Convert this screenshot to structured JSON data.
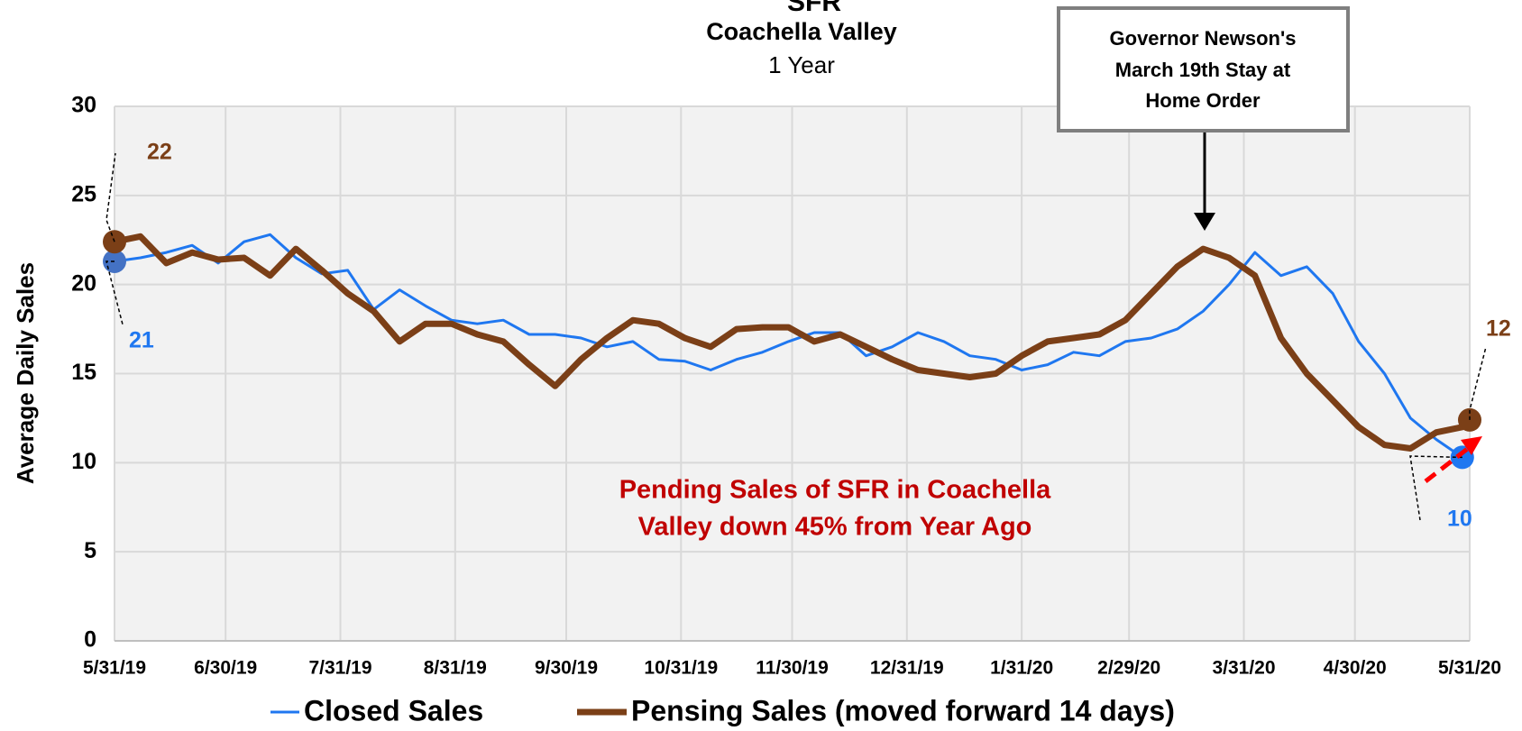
{
  "chart_data": {
    "type": "line",
    "title": "SFR",
    "subtitle": "Coachella Valley",
    "subtitle2": "1 Year",
    "y_label": "Average Daily Sales",
    "annotations": [
      "Governor Newson's",
      "March 19th Stay at",
      "Home Order"
    ],
    "note": [
      "Pending Sales of SFR in Coachella",
      "Valley down 45% from Year Ago"
    ],
    "x": [
      "2019-05-31",
      "2019-06-07",
      "2019-06-14",
      "2019-06-21",
      "2019-06-28",
      "2019-07-05",
      "2019-07-12",
      "2019-07-19",
      "2019-07-26",
      "2019-08-02",
      "2019-08-09",
      "2019-08-16",
      "2019-08-23",
      "2019-08-30",
      "2019-09-06",
      "2019-09-13",
      "2019-09-20",
      "2019-09-27",
      "2019-10-04",
      "2019-10-11",
      "2019-10-18",
      "2019-10-25",
      "2019-11-01",
      "2019-11-08",
      "2019-11-15",
      "2019-11-22",
      "2019-11-29",
      "2019-12-06",
      "2019-12-13",
      "2019-12-20",
      "2019-12-27",
      "2020-01-03",
      "2020-01-10",
      "2020-01-17",
      "2020-01-24",
      "2020-01-31",
      "2020-02-07",
      "2020-02-14",
      "2020-02-21",
      "2020-02-28",
      "2020-03-06",
      "2020-03-13",
      "2020-03-20",
      "2020-03-27",
      "2020-04-03",
      "2020-04-10",
      "2020-04-17",
      "2020-04-24",
      "2020-05-01",
      "2020-05-08",
      "2020-05-15",
      "2020-05-22",
      "2020-05-29",
      "2020-05-31"
    ],
    "series": [
      {
        "name": "Closed Sales",
        "color": "#1f77f0",
        "width": 3,
        "values": [
          21.3,
          21.5,
          21.8,
          22.2,
          21.2,
          22.4,
          22.8,
          21.5,
          20.6,
          20.8,
          18.6,
          19.7,
          18.8,
          18.0,
          17.8,
          18.0,
          17.2,
          17.2,
          17.0,
          16.5,
          16.8,
          15.8,
          15.7,
          15.2,
          15.8,
          16.2,
          16.8,
          17.3,
          17.3,
          16.0,
          16.5,
          17.3,
          16.8,
          16.0,
          15.8,
          15.2,
          15.5,
          16.2,
          16.0,
          16.8,
          17.0,
          17.5,
          18.5,
          20.0,
          21.8,
          20.5,
          21.0,
          19.5,
          16.8,
          15.0,
          12.5,
          11.3,
          10.3,
          null
        ],
        "value_labels": [
          "21",
          null,
          null,
          null,
          null,
          null,
          null,
          null,
          null,
          null,
          null,
          null,
          null,
          null,
          null,
          null,
          null,
          null,
          null,
          null,
          null,
          null,
          null,
          null,
          null,
          null,
          null,
          null,
          null,
          null,
          null,
          null,
          null,
          null,
          null,
          null,
          null,
          null,
          null,
          null,
          null,
          null,
          null,
          null,
          null,
          null,
          null,
          null,
          null,
          null,
          null,
          null,
          "10",
          null
        ]
      },
      {
        "name": "Pensing Sales (moved forward 14 days)",
        "color": "#7b3f17",
        "width": 7,
        "values": [
          22.4,
          22.7,
          21.2,
          21.8,
          21.4,
          21.5,
          20.5,
          22.0,
          20.8,
          19.5,
          18.5,
          16.8,
          17.8,
          17.8,
          17.2,
          16.8,
          15.5,
          14.3,
          15.8,
          17.0,
          18.0,
          17.8,
          17.0,
          16.5,
          17.5,
          17.6,
          17.6,
          16.8,
          17.2,
          16.5,
          15.8,
          15.2,
          15.0,
          14.8,
          15.0,
          16.0,
          16.8,
          17.0,
          17.2,
          18.0,
          19.5,
          21.0,
          22.0,
          21.5,
          20.5,
          17.0,
          15.0,
          13.5,
          12.0,
          11.0,
          10.8,
          11.7,
          12.0,
          12.4
        ],
        "value_labels": [
          "22",
          null,
          null,
          null,
          null,
          null,
          null,
          null,
          null,
          null,
          null,
          null,
          null,
          null,
          null,
          null,
          null,
          null,
          null,
          null,
          null,
          null,
          null,
          null,
          null,
          null,
          null,
          null,
          null,
          null,
          null,
          null,
          null,
          null,
          null,
          null,
          null,
          null,
          null,
          null,
          null,
          null,
          null,
          null,
          null,
          null,
          null,
          null,
          null,
          null,
          null,
          null,
          null,
          "12"
        ]
      }
    ],
    "xlim": [
      "2019-05-31",
      "2020-05-31"
    ],
    "xticks": [
      {
        "value": "2019-05-31",
        "label": "5/31/19"
      },
      {
        "value": "2019-06-30",
        "label": "6/30/19"
      },
      {
        "value": "2019-07-31",
        "label": "7/31/19"
      },
      {
        "value": "2019-08-31",
        "label": "8/31/19"
      },
      {
        "value": "2019-09-30",
        "label": "9/30/19"
      },
      {
        "value": "2019-10-31",
        "label": "10/31/19"
      },
      {
        "value": "2019-11-30",
        "label": "11/30/19"
      },
      {
        "value": "2019-12-31",
        "label": "12/31/19"
      },
      {
        "value": "2020-01-31",
        "label": "1/31/20"
      },
      {
        "value": "2020-02-29",
        "label": "2/29/20"
      },
      {
        "value": "2020-03-31",
        "label": "3/31/20"
      },
      {
        "value": "2020-04-30",
        "label": "4/30/20"
      },
      {
        "value": "2020-05-31",
        "label": "5/31/20"
      }
    ],
    "ylim": [
      0,
      30
    ],
    "yticks": [
      0,
      5,
      10,
      15,
      20,
      25,
      30
    ],
    "grid": true
  }
}
